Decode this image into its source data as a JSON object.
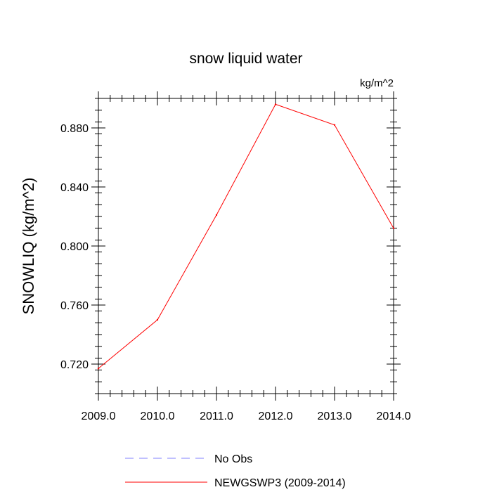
{
  "chart_data": {
    "type": "line",
    "title": "snow liquid water",
    "units": "kg/m^2",
    "ylabel": "SNOWLIQ  (kg/m^2)",
    "xlabel": "",
    "xlim": [
      2009.0,
      2014.0
    ],
    "ylim": [
      0.7,
      0.9
    ],
    "x_ticks": [
      2009.0,
      2010.0,
      2011.0,
      2012.0,
      2013.0,
      2014.0
    ],
    "x_tick_labels": [
      "2009.0",
      "2010.0",
      "2011.0",
      "2012.0",
      "2013.0",
      "2014.0"
    ],
    "y_ticks": [
      0.72,
      0.76,
      0.8,
      0.84,
      0.88
    ],
    "y_tick_labels": [
      "0.720",
      "0.760",
      "0.800",
      "0.840",
      "0.880"
    ],
    "y_minor_step": 0.008,
    "x_minor_step": 0.2,
    "series": [
      {
        "name": "NEWGSWP3 (2009-2014)",
        "color": "#ff0000",
        "style": "solid",
        "x": [
          2009,
          2010,
          2011,
          2012,
          2013,
          2014
        ],
        "values": [
          0.717,
          0.75,
          0.821,
          0.896,
          0.882,
          0.812
        ]
      }
    ],
    "legend": [
      {
        "label": "No Obs",
        "color": "#8080ff",
        "style": "dashed"
      },
      {
        "label": "NEWGSWP3 (2009-2014)",
        "color": "#ff0000",
        "style": "solid"
      }
    ]
  }
}
